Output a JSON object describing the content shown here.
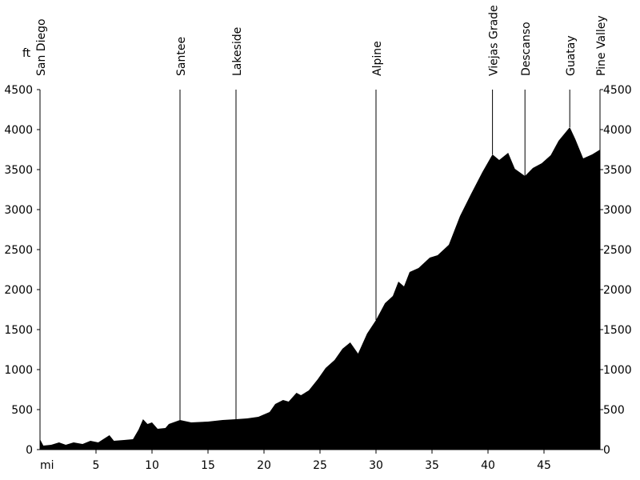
{
  "chart_data": {
    "type": "area",
    "title": "",
    "xlabel": "mi",
    "ylabel": "ft",
    "xlim": [
      0,
      50
    ],
    "ylim": [
      0,
      4500
    ],
    "x_ticks": [
      5,
      10,
      15,
      20,
      25,
      30,
      35,
      40,
      45
    ],
    "y_ticks": [
      0,
      500,
      1000,
      1500,
      2000,
      2500,
      3000,
      3500,
      4000,
      4500
    ],
    "fill_color": "#000000",
    "grid": false,
    "landmarks": [
      {
        "name": "San Diego",
        "mile": 0
      },
      {
        "name": "Santee",
        "mile": 12.5
      },
      {
        "name": "Lakeside",
        "mile": 17.5
      },
      {
        "name": "Alpine",
        "mile": 30
      },
      {
        "name": "Viejas Grade",
        "mile": 40.4
      },
      {
        "name": "Descanso",
        "mile": 43.3
      },
      {
        "name": "Guatay",
        "mile": 47.3
      },
      {
        "name": "Pine Valley",
        "mile": 50
      }
    ],
    "profile": [
      {
        "x": 0,
        "y": 130
      },
      {
        "x": 0.3,
        "y": 50
      },
      {
        "x": 1,
        "y": 60
      },
      {
        "x": 1.7,
        "y": 90
      },
      {
        "x": 2.3,
        "y": 60
      },
      {
        "x": 3,
        "y": 90
      },
      {
        "x": 3.8,
        "y": 70
      },
      {
        "x": 4.5,
        "y": 110
      },
      {
        "x": 5.2,
        "y": 90
      },
      {
        "x": 6.2,
        "y": 180
      },
      {
        "x": 6.6,
        "y": 110
      },
      {
        "x": 7.5,
        "y": 120
      },
      {
        "x": 8.3,
        "y": 130
      },
      {
        "x": 8.8,
        "y": 250
      },
      {
        "x": 9.2,
        "y": 380
      },
      {
        "x": 9.6,
        "y": 320
      },
      {
        "x": 10,
        "y": 340
      },
      {
        "x": 10.5,
        "y": 260
      },
      {
        "x": 11.2,
        "y": 270
      },
      {
        "x": 11.5,
        "y": 320
      },
      {
        "x": 12.5,
        "y": 370
      },
      {
        "x": 13.5,
        "y": 340
      },
      {
        "x": 15,
        "y": 350
      },
      {
        "x": 16.3,
        "y": 370
      },
      {
        "x": 17.5,
        "y": 380
      },
      {
        "x": 18.5,
        "y": 390
      },
      {
        "x": 19.5,
        "y": 410
      },
      {
        "x": 20.5,
        "y": 470
      },
      {
        "x": 21,
        "y": 570
      },
      {
        "x": 21.7,
        "y": 620
      },
      {
        "x": 22.2,
        "y": 600
      },
      {
        "x": 22.9,
        "y": 710
      },
      {
        "x": 23.3,
        "y": 680
      },
      {
        "x": 24,
        "y": 740
      },
      {
        "x": 24.8,
        "y": 880
      },
      {
        "x": 25.5,
        "y": 1020
      },
      {
        "x": 26.3,
        "y": 1120
      },
      {
        "x": 27,
        "y": 1260
      },
      {
        "x": 27.7,
        "y": 1340
      },
      {
        "x": 28.4,
        "y": 1200
      },
      {
        "x": 29.2,
        "y": 1450
      },
      {
        "x": 30,
        "y": 1620
      },
      {
        "x": 30.8,
        "y": 1830
      },
      {
        "x": 31.5,
        "y": 1920
      },
      {
        "x": 32,
        "y": 2100
      },
      {
        "x": 32.5,
        "y": 2040
      },
      {
        "x": 33,
        "y": 2220
      },
      {
        "x": 33.8,
        "y": 2270
      },
      {
        "x": 34.8,
        "y": 2400
      },
      {
        "x": 35.5,
        "y": 2430
      },
      {
        "x": 36.5,
        "y": 2560
      },
      {
        "x": 37.5,
        "y": 2920
      },
      {
        "x": 38.5,
        "y": 3200
      },
      {
        "x": 39.5,
        "y": 3470
      },
      {
        "x": 40.4,
        "y": 3690
      },
      {
        "x": 41,
        "y": 3620
      },
      {
        "x": 41.8,
        "y": 3710
      },
      {
        "x": 42.4,
        "y": 3510
      },
      {
        "x": 43.3,
        "y": 3420
      },
      {
        "x": 44,
        "y": 3520
      },
      {
        "x": 44.8,
        "y": 3580
      },
      {
        "x": 45.6,
        "y": 3680
      },
      {
        "x": 46.3,
        "y": 3860
      },
      {
        "x": 47.3,
        "y": 4030
      },
      {
        "x": 47.8,
        "y": 3880
      },
      {
        "x": 48.5,
        "y": 3640
      },
      {
        "x": 49.3,
        "y": 3690
      },
      {
        "x": 50,
        "y": 3750
      }
    ]
  }
}
